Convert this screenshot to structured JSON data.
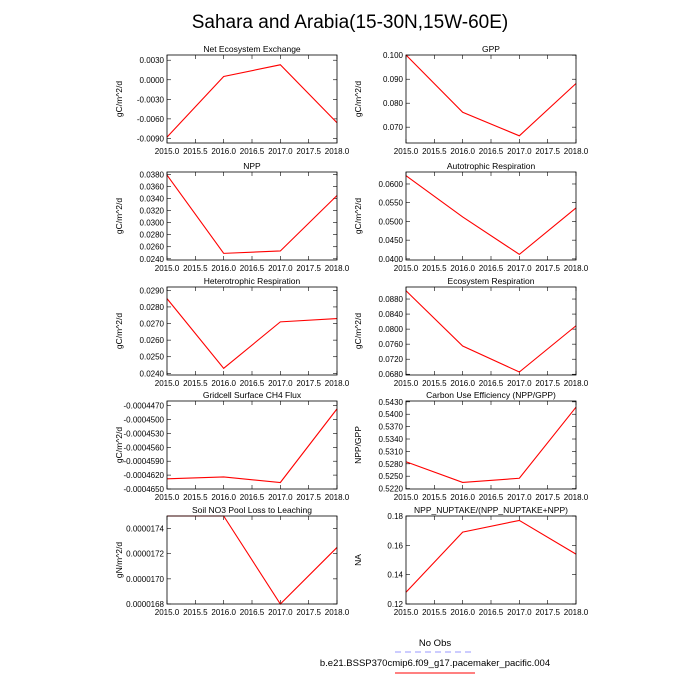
{
  "figure": {
    "title": "Sahara and Arabia(15-30N,15W-60E)"
  },
  "colors": {
    "series": "#ff0000",
    "obs": "#9999ff",
    "axis": "#000000"
  },
  "legend": {
    "entries": [
      {
        "label": "No Obs",
        "style": "dashed",
        "color": "#9999ff"
      },
      {
        "label": "b.e21.BSSP370cmip6.f09_g17.pacemaker_pacific.004",
        "style": "solid",
        "color": "#ff0000"
      }
    ]
  },
  "chart_data": [
    {
      "type": "line",
      "title": "Net Ecosystem Exchange",
      "ylabel": "gC/m^2/d",
      "xlim": [
        2015,
        2018
      ],
      "xticks": [
        "2015.0",
        "2015.5",
        "2016.0",
        "2016.5",
        "2017.0",
        "2017.5",
        "2018.0"
      ],
      "ylim": [
        -0.0097,
        0.0038
      ],
      "yticks": [
        "-0.0090",
        "-0.0060",
        "-0.0030",
        "0.0000",
        "0.0030"
      ],
      "ytick_values": [
        -0.009,
        -0.006,
        -0.003,
        0.0,
        0.003
      ],
      "series": [
        {
          "x": [
            2015,
            2016,
            2017,
            2018
          ],
          "values": [
            -0.0088,
            0.0005,
            0.0023,
            -0.0066
          ]
        }
      ]
    },
    {
      "type": "line",
      "title": "GPP",
      "ylabel": "gC/m^2/d",
      "xlim": [
        2015,
        2018
      ],
      "xticks": [
        "2015.0",
        "2015.5",
        "2016.0",
        "2016.5",
        "2017.0",
        "2017.5",
        "2018.0"
      ],
      "ylim": [
        0.0634,
        0.1001
      ],
      "yticks": [
        "0.070",
        "0.080",
        "0.090",
        "0.100"
      ],
      "ytick_values": [
        0.07,
        0.08,
        0.09,
        0.1
      ],
      "series": [
        {
          "x": [
            2015,
            2016,
            2017,
            2018
          ],
          "values": [
            0.1001,
            0.0762,
            0.0664,
            0.0882
          ]
        }
      ]
    },
    {
      "type": "line",
      "title": "NPP",
      "ylabel": "gC/m^2/d",
      "xlim": [
        2015,
        2018
      ],
      "xticks": [
        "2015.0",
        "2015.5",
        "2016.0",
        "2016.5",
        "2017.0",
        "2017.5",
        "2018.0"
      ],
      "ylim": [
        0.0238,
        0.0384
      ],
      "yticks": [
        "0.0240",
        "0.0260",
        "0.0280",
        "0.0300",
        "0.0320",
        "0.0340",
        "0.0360",
        "0.0380"
      ],
      "ytick_values": [
        0.024,
        0.026,
        0.028,
        0.03,
        0.032,
        0.034,
        0.036,
        0.038
      ],
      "series": [
        {
          "x": [
            2015,
            2016,
            2017,
            2018
          ],
          "values": [
            0.0379,
            0.0249,
            0.0253,
            0.0345
          ]
        }
      ]
    },
    {
      "type": "line",
      "title": "Autotrophic Respiration",
      "ylabel": "gC/m^2/d",
      "xlim": [
        2015,
        2018
      ],
      "xticks": [
        "2015.0",
        "2015.5",
        "2016.0",
        "2016.5",
        "2017.0",
        "2017.5",
        "2018.0"
      ],
      "ylim": [
        0.0397,
        0.0632
      ],
      "yticks": [
        "0.0400",
        "0.0450",
        "0.0500",
        "0.0550",
        "0.0600"
      ],
      "ytick_values": [
        0.04,
        0.045,
        0.05,
        0.055,
        0.06
      ],
      "series": [
        {
          "x": [
            2015,
            2016,
            2017,
            2018
          ],
          "values": [
            0.0622,
            0.0512,
            0.0412,
            0.0536
          ]
        }
      ]
    },
    {
      "type": "line",
      "title": "Heterotrophic Respiration",
      "ylabel": "gC/m^2/d",
      "xlim": [
        2015,
        2018
      ],
      "xticks": [
        "2015.0",
        "2015.5",
        "2016.0",
        "2016.5",
        "2017.0",
        "2017.5",
        "2018.0"
      ],
      "ylim": [
        0.0239,
        0.0292
      ],
      "yticks": [
        "0.0240",
        "0.0250",
        "0.0260",
        "0.0270",
        "0.0280",
        "0.0290"
      ],
      "ytick_values": [
        0.024,
        0.025,
        0.026,
        0.027,
        0.028,
        0.029
      ],
      "series": [
        {
          "x": [
            2015,
            2016,
            2017,
            2018
          ],
          "values": [
            0.0285,
            0.0243,
            0.0271,
            0.0273
          ]
        }
      ]
    },
    {
      "type": "line",
      "title": "Ecosystem Respiration",
      "ylabel": "gC/m^2/d",
      "xlim": [
        2015,
        2018
      ],
      "xticks": [
        "2015.0",
        "2015.5",
        "2016.0",
        "2016.5",
        "2017.0",
        "2017.5",
        "2018.0"
      ],
      "ylim": [
        0.0678,
        0.0912
      ],
      "yticks": [
        "0.0680",
        "0.0720",
        "0.0760",
        "0.0800",
        "0.0840",
        "0.0880"
      ],
      "ytick_values": [
        0.068,
        0.072,
        0.076,
        0.08,
        0.084,
        0.088
      ],
      "series": [
        {
          "x": [
            2015,
            2016,
            2017,
            2018
          ],
          "values": [
            0.0902,
            0.0755,
            0.0686,
            0.0809
          ]
        }
      ]
    },
    {
      "type": "line",
      "title": "Gridcell Surface CH4 Flux",
      "ylabel": "gC/m^2/d",
      "xlim": [
        2015,
        2018
      ],
      "xticks": [
        "2015.0",
        "2015.5",
        "2016.0",
        "2016.5",
        "2017.0",
        "2017.5",
        "2018.0"
      ],
      "ylim": [
        -0.000465,
        -0.000446
      ],
      "yticks": [
        "-0.0004650",
        "-0.0004620",
        "-0.0004590",
        "-0.0004560",
        "-0.0004530",
        "-0.0004500",
        "-0.0004470"
      ],
      "ytick_values": [
        -0.000465,
        -0.000462,
        -0.000459,
        -0.000456,
        -0.000453,
        -0.00045,
        -0.000447
      ],
      "series": [
        {
          "x": [
            2015,
            2016,
            2017,
            2018
          ],
          "values": [
            -0.0004628,
            -0.0004624,
            -0.0004636,
            -0.0004477
          ]
        }
      ]
    },
    {
      "type": "line",
      "title": "Carbon Use Efficiency (NPP/GPP)",
      "ylabel": "NPP/GPP",
      "xlim": [
        2015,
        2018
      ],
      "xticks": [
        "2015.0",
        "2015.5",
        "2016.0",
        "2016.5",
        "2017.0",
        "2017.5",
        "2018.0"
      ],
      "ylim": [
        0.5219,
        0.5432
      ],
      "yticks": [
        "0.5220",
        "0.5250",
        "0.5280",
        "0.5310",
        "0.5340",
        "0.5370",
        "0.5400",
        "0.5430"
      ],
      "ytick_values": [
        0.522,
        0.525,
        0.528,
        0.531,
        0.534,
        0.537,
        0.54,
        0.543
      ],
      "series": [
        {
          "x": [
            2015,
            2016,
            2017,
            2018
          ],
          "values": [
            0.5285,
            0.5235,
            0.5245,
            0.5417
          ]
        }
      ]
    },
    {
      "type": "line",
      "title": "Soil NO3 Pool Loss to Leaching",
      "ylabel": "gN/m^2/d",
      "xlim": [
        2015,
        2018
      ],
      "xticks": [
        "2015.0",
        "2015.5",
        "2016.0",
        "2016.5",
        "2017.0",
        "2017.5",
        "2018.0"
      ],
      "ylim": [
        1.68e-05,
        1.75e-05
      ],
      "yticks": [
        "0.0000168",
        "0.0000170",
        "0.0000172",
        "0.0000174"
      ],
      "ytick_values": [
        1.68e-05,
        1.7e-05,
        1.72e-05,
        1.74e-05
      ],
      "series": [
        {
          "x": [
            2015,
            2016,
            2017,
            2018
          ],
          "values": [
            1.75e-05,
            1.75e-05,
            1.68e-05,
            1.725e-05
          ]
        }
      ]
    },
    {
      "type": "line",
      "title": "NPP_NUPTAKE/(NPP_NUPTAKE+NPP)",
      "ylabel": "NA",
      "xlim": [
        2015,
        2018
      ],
      "xticks": [
        "2015.0",
        "2015.5",
        "2016.0",
        "2016.5",
        "2017.0",
        "2017.5",
        "2018.0"
      ],
      "ylim": [
        0.12,
        0.18
      ],
      "yticks": [
        "0.12",
        "0.14",
        "0.16",
        "0.18"
      ],
      "ytick_values": [
        0.12,
        0.14,
        0.16,
        0.18
      ],
      "series": [
        {
          "x": [
            2015,
            2016,
            2017,
            2018
          ],
          "values": [
            0.128,
            0.169,
            0.177,
            0.154
          ]
        }
      ]
    }
  ]
}
